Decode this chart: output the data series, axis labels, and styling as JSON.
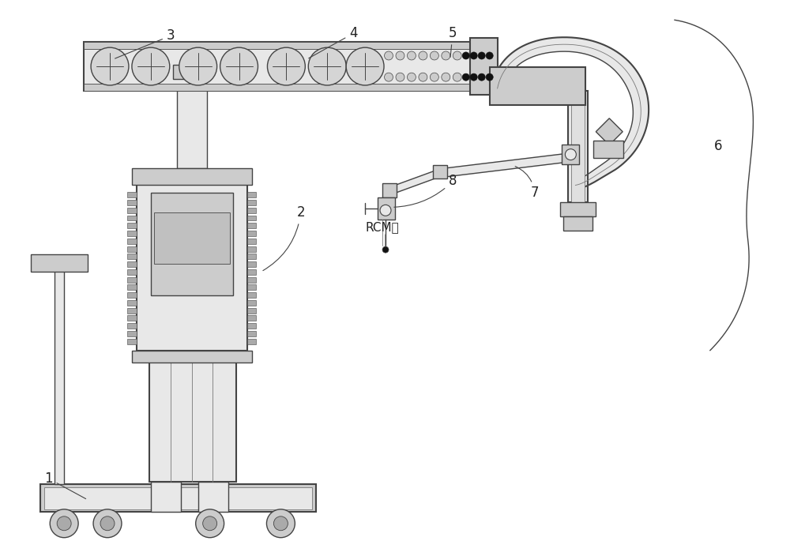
{
  "bg_color": "#ffffff",
  "lc": "#444444",
  "lcl": "#777777",
  "fl": "#e8e8e8",
  "fm": "#cccccc",
  "fd": "#aaaaaa",
  "figsize": [
    10.0,
    7.04
  ],
  "dpi": 100
}
